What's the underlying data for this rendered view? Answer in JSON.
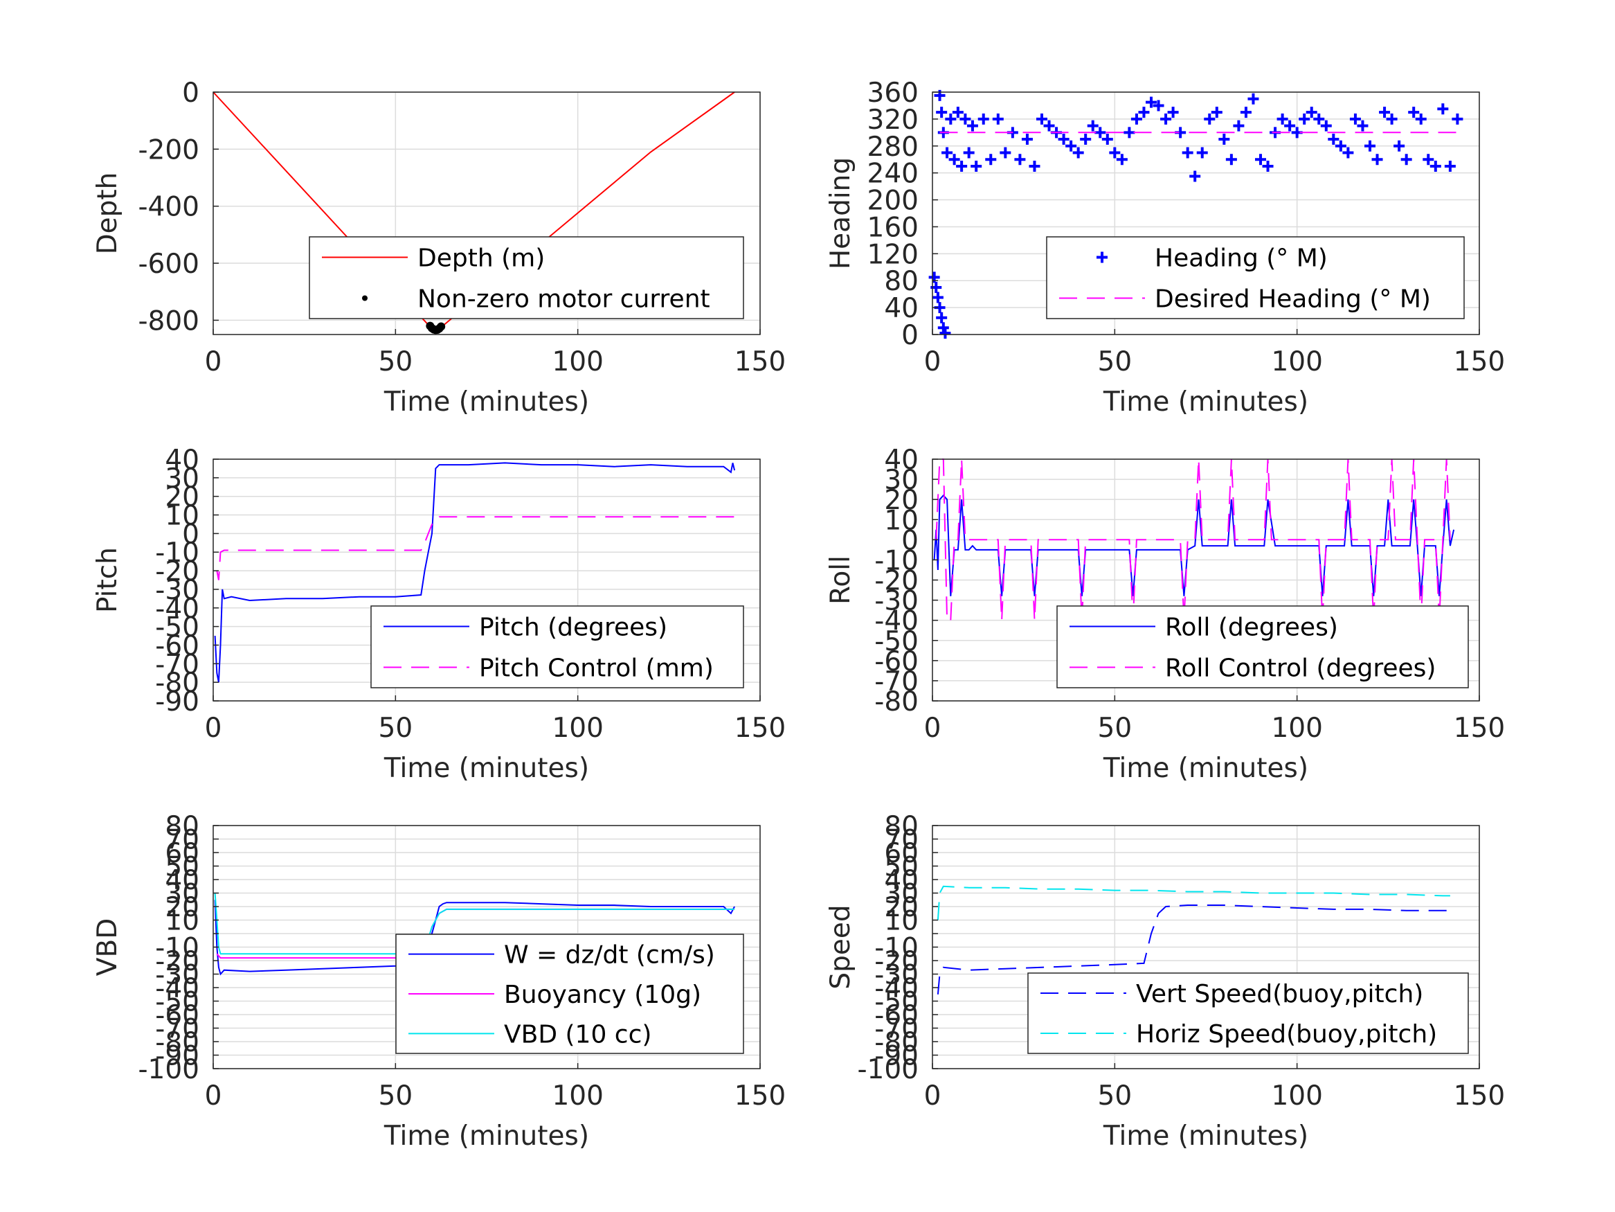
{
  "figure": {
    "background": "#ffffff",
    "grid_color": "#dcdcdc",
    "axis_color": "#262626"
  },
  "chart_data": [
    {
      "id": "depth",
      "type": "line",
      "xlabel": "Time (minutes)",
      "ylabel": "Depth",
      "xlim": [
        0,
        150
      ],
      "ylim": [
        -850,
        0
      ],
      "xticks": [
        0,
        50,
        100,
        150
      ],
      "yticks": [
        0,
        -200,
        -400,
        -600,
        -800
      ],
      "grid": true,
      "legend": {
        "placement": "bottom-right",
        "entries": [
          {
            "label": "Depth (m)",
            "color": "#ff0000",
            "style": "solid"
          },
          {
            "label": "Non-zero motor current",
            "color": "#000000",
            "style": "dot"
          }
        ]
      },
      "series": [
        {
          "name": "Depth (m)",
          "style": "solid",
          "color": "#ff0000",
          "x": [
            0,
            60,
            61,
            62,
            120,
            143
          ],
          "y": [
            0,
            -830,
            -835,
            -830,
            -210,
            0
          ]
        },
        {
          "name": "Non-zero motor current",
          "style": "dot",
          "color": "#000000",
          "x": [
            59.5,
            60,
            60.5,
            61,
            61.5,
            62,
            62.5
          ],
          "y": [
            -820,
            -828,
            -832,
            -834,
            -833,
            -829,
            -822
          ]
        }
      ]
    },
    {
      "id": "heading",
      "type": "scatter",
      "xlabel": "Time (minutes)",
      "ylabel": "Heading",
      "xlim": [
        0,
        150
      ],
      "ylim": [
        0,
        360
      ],
      "xticks": [
        0,
        50,
        100,
        150
      ],
      "yticks": [
        0,
        40,
        80,
        120,
        160,
        200,
        240,
        280,
        320,
        360
      ],
      "grid": true,
      "legend": {
        "placement": "bottom-right",
        "entries": [
          {
            "label": "Heading (° M)",
            "color": "#0000ff",
            "style": "plus"
          },
          {
            "label": "Desired Heading (° M)",
            "color": "#ff00ff",
            "style": "dashed"
          }
        ]
      },
      "series": [
        {
          "name": "Heading (° M)",
          "style": "plus",
          "color": "#0000ff",
          "x": [
            0.5,
            1,
            1.5,
            2,
            2.5,
            3,
            3.5,
            2,
            2.5,
            3,
            4,
            5,
            6,
            7,
            8,
            9,
            10,
            11,
            12,
            14,
            16,
            18,
            20,
            22,
            24,
            26,
            28,
            30,
            32,
            34,
            36,
            38,
            40,
            42,
            44,
            46,
            48,
            50,
            52,
            54,
            56,
            58,
            60,
            62,
            64,
            66,
            68,
            70,
            72,
            74,
            76,
            78,
            80,
            82,
            84,
            86,
            88,
            90,
            92,
            94,
            96,
            98,
            100,
            102,
            104,
            106,
            108,
            110,
            112,
            114,
            116,
            118,
            120,
            122,
            124,
            126,
            128,
            130,
            132,
            134,
            136,
            138,
            140,
            142,
            144
          ],
          "y": [
            85,
            70,
            55,
            40,
            25,
            10,
            2,
            355,
            330,
            300,
            270,
            320,
            260,
            330,
            250,
            320,
            270,
            310,
            250,
            320,
            260,
            320,
            270,
            300,
            260,
            290,
            250,
            320,
            310,
            300,
            290,
            280,
            270,
            290,
            310,
            300,
            290,
            270,
            260,
            300,
            320,
            330,
            345,
            340,
            320,
            330,
            300,
            270,
            235,
            270,
            320,
            330,
            290,
            260,
            310,
            330,
            350,
            260,
            250,
            300,
            320,
            310,
            300,
            320,
            330,
            320,
            310,
            290,
            280,
            270,
            320,
            310,
            280,
            260,
            330,
            320,
            280,
            260,
            330,
            320,
            260,
            250,
            335,
            250,
            320
          ]
        },
        {
          "name": "Desired Heading (° M)",
          "style": "dashed",
          "color": "#ff00ff",
          "x": [
            2,
            144
          ],
          "y": [
            300,
            300
          ]
        }
      ]
    },
    {
      "id": "pitch",
      "type": "line",
      "xlabel": "Time (minutes)",
      "ylabel": "Pitch",
      "xlim": [
        0,
        150
      ],
      "ylim": [
        -90,
        40
      ],
      "xticks": [
        0,
        50,
        100,
        150
      ],
      "yticks": [
        40,
        30,
        20,
        10,
        0,
        -10,
        -20,
        -30,
        -40,
        -50,
        -60,
        -70,
        -80,
        -90
      ],
      "grid": true,
      "legend": {
        "placement": "bottom-right",
        "entries": [
          {
            "label": "Pitch (degrees)",
            "color": "#0000ff",
            "style": "solid"
          },
          {
            "label": "Pitch Control (mm)",
            "color": "#ff00ff",
            "style": "dashed"
          }
        ]
      },
      "series": [
        {
          "name": "Pitch (degrees)",
          "style": "solid",
          "color": "#0000ff",
          "x": [
            0.5,
            1,
            1.5,
            2,
            2.5,
            3,
            5,
            10,
            20,
            30,
            40,
            50,
            57,
            58,
            59,
            60,
            61,
            62,
            70,
            80,
            90,
            100,
            110,
            120,
            130,
            140,
            142,
            142.5,
            143
          ],
          "y": [
            -55,
            -75,
            -80,
            -60,
            -30,
            -35,
            -34,
            -36,
            -35,
            -35,
            -34,
            -34,
            -33,
            -20,
            -10,
            0,
            35,
            37,
            37,
            38,
            37,
            37,
            36,
            37,
            36,
            36,
            33,
            38,
            34
          ]
        },
        {
          "name": "Pitch Control (mm)",
          "style": "dashed",
          "color": "#ff00ff",
          "x": [
            1,
            1.5,
            2,
            3,
            57,
            58,
            59,
            60,
            62,
            70,
            143
          ],
          "y": [
            -20,
            -25,
            -10,
            -9,
            -9,
            -5,
            0,
            5,
            9,
            9,
            9
          ]
        }
      ]
    },
    {
      "id": "roll",
      "type": "line",
      "xlabel": "Time (minutes)",
      "ylabel": "Roll",
      "xlim": [
        0,
        150
      ],
      "ylim": [
        -80,
        40
      ],
      "xticks": [
        0,
        50,
        100,
        150
      ],
      "yticks": [
        40,
        30,
        20,
        10,
        0,
        -10,
        -20,
        -30,
        -40,
        -50,
        -60,
        -70,
        -80
      ],
      "grid": true,
      "legend": {
        "placement": "bottom-right",
        "entries": [
          {
            "label": "Roll (degrees)",
            "color": "#0000ff",
            "style": "solid"
          },
          {
            "label": "Roll Control (degrees)",
            "color": "#ff00ff",
            "style": "dashed"
          }
        ]
      },
      "series": [
        {
          "name": "Roll (degrees)",
          "style": "solid",
          "color": "#0000ff",
          "x": [
            0.5,
            1,
            1.5,
            2,
            3,
            4,
            5,
            6,
            7,
            8,
            9,
            10,
            11,
            12,
            18,
            19,
            20,
            27,
            28,
            29,
            40,
            41,
            42,
            54,
            55,
            56,
            68,
            69,
            70,
            72,
            73,
            74,
            81,
            82,
            83,
            88,
            90,
            91,
            92,
            94,
            100,
            106,
            107,
            108,
            113,
            114,
            115,
            118,
            120,
            121,
            122,
            124,
            125,
            126,
            127,
            131,
            132,
            133,
            134,
            135,
            138,
            139,
            140,
            141,
            142,
            143
          ],
          "y": [
            -10,
            5,
            -15,
            20,
            22,
            20,
            -28,
            -5,
            -5,
            20,
            -5,
            -5,
            -3,
            -5,
            -5,
            -28,
            -5,
            -5,
            -28,
            -5,
            -5,
            -28,
            -5,
            -5,
            -28,
            -5,
            -5,
            -28,
            -5,
            -3,
            20,
            -3,
            -3,
            20,
            -3,
            -3,
            -3,
            -3,
            20,
            -3,
            -3,
            -3,
            -28,
            -3,
            -3,
            20,
            -3,
            -3,
            -3,
            -28,
            -3,
            -3,
            20,
            -3,
            -3,
            -3,
            20,
            -3,
            -28,
            -3,
            -3,
            -28,
            -3,
            20,
            -3,
            5
          ]
        },
        {
          "name": "Roll Control (degrees)",
          "style": "dashed",
          "color": "#ff00ff",
          "x": [
            1,
            2,
            3,
            4,
            5,
            6,
            7,
            8,
            9,
            10,
            12,
            18,
            19,
            20,
            27,
            28,
            29,
            40,
            41,
            42,
            54,
            55,
            56,
            68,
            69,
            70,
            72,
            73,
            74,
            81,
            82,
            83,
            91,
            92,
            93,
            106,
            107,
            108,
            113,
            114,
            115,
            120,
            121,
            122,
            125,
            126,
            127,
            131,
            132,
            133,
            134,
            135,
            138,
            139,
            140,
            141,
            142
          ],
          "y": [
            0,
            40,
            40,
            -40,
            -40,
            0,
            0,
            40,
            0,
            0,
            0,
            0,
            -40,
            0,
            0,
            -40,
            0,
            0,
            -40,
            0,
            0,
            -40,
            0,
            0,
            -40,
            0,
            0,
            40,
            0,
            0,
            40,
            0,
            0,
            40,
            0,
            0,
            -40,
            0,
            0,
            40,
            0,
            0,
            -40,
            0,
            0,
            40,
            0,
            0,
            40,
            0,
            -40,
            0,
            0,
            -40,
            0,
            40,
            0
          ]
        }
      ]
    },
    {
      "id": "vbd",
      "type": "line",
      "xlabel": "Time (minutes)",
      "ylabel": "VBD",
      "xlim": [
        0,
        150
      ],
      "ylim": [
        -100,
        80
      ],
      "xticks": [
        0,
        50,
        100,
        150
      ],
      "yticks": [
        80,
        70,
        60,
        50,
        40,
        30,
        20,
        10,
        0,
        -10,
        -20,
        -30,
        -40,
        -50,
        -60,
        -70,
        -80,
        -90,
        -100
      ],
      "ytick_labels": [
        "80",
        "70",
        "60",
        "50",
        "40",
        "30",
        "20",
        "10",
        "",
        "-10",
        "-20",
        "-30",
        "-40",
        "-50",
        "-60",
        "-70",
        "-80",
        "-90",
        "-100"
      ],
      "grid": true,
      "legend": {
        "placement": "bottom-right",
        "entries": [
          {
            "label": "W = dz/dt (cm/s)",
            "color": "#0000ff",
            "style": "solid"
          },
          {
            "label": "Buoyancy (10g)",
            "color": "#ff00ff",
            "style": "solid"
          },
          {
            "label": "VBD (10 cc)",
            "color": "#00e5ee",
            "style": "solid"
          }
        ]
      },
      "series": [
        {
          "name": "W = dz/dt (cm/s)",
          "style": "solid",
          "color": "#0000ff",
          "x": [
            0.5,
            1,
            1.5,
            2,
            3,
            10,
            20,
            30,
            40,
            50,
            56,
            57,
            58,
            59,
            60,
            61,
            62,
            63,
            64,
            70,
            80,
            90,
            100,
            110,
            120,
            130,
            140,
            142,
            143
          ],
          "y": [
            25,
            -10,
            -25,
            -30,
            -27,
            -28,
            -27,
            -26,
            -25,
            -24,
            -22,
            -20,
            -15,
            -10,
            0,
            10,
            20,
            22,
            23,
            23,
            23,
            22,
            21,
            21,
            20,
            20,
            20,
            15,
            20
          ]
        },
        {
          "name": "Buoyancy (10g)",
          "style": "solid",
          "color": "#ff00ff",
          "x": [
            1,
            2,
            3,
            57,
            58,
            60,
            62,
            64,
            143
          ],
          "y": [
            -15,
            -18,
            -18,
            -18,
            -15,
            5,
            15,
            18,
            18
          ]
        },
        {
          "name": "VBD (10 cc)",
          "style": "solid",
          "color": "#00e5ee",
          "x": [
            0.5,
            1,
            1.5,
            2,
            3,
            57,
            58,
            60,
            62,
            64,
            143
          ],
          "y": [
            30,
            10,
            -10,
            -15,
            -15,
            -15,
            -12,
            5,
            15,
            18,
            18
          ]
        }
      ]
    },
    {
      "id": "speed",
      "type": "line",
      "xlabel": "Time (minutes)",
      "ylabel": "Speed",
      "xlim": [
        0,
        150
      ],
      "ylim": [
        -100,
        80
      ],
      "xticks": [
        0,
        50,
        100,
        150
      ],
      "yticks": [
        80,
        70,
        60,
        50,
        40,
        30,
        20,
        10,
        0,
        -10,
        -20,
        -30,
        -40,
        -50,
        -60,
        -70,
        -80,
        -90,
        -100
      ],
      "ytick_labels": [
        "80",
        "70",
        "60",
        "50",
        "40",
        "30",
        "20",
        "10",
        "",
        "-10",
        "-20",
        "-30",
        "-40",
        "-50",
        "-60",
        "-70",
        "-80",
        "-90",
        "-100"
      ],
      "grid": true,
      "legend": {
        "placement": "bottom-right",
        "entries": [
          {
            "label": "Vert Speed(buoy,pitch)",
            "color": "#0000ff",
            "style": "dashed"
          },
          {
            "label": "Horiz Speed(buoy,pitch)",
            "color": "#00e5ee",
            "style": "dashed"
          }
        ]
      },
      "series": [
        {
          "name": "Vert Speed(buoy,pitch)",
          "style": "dashed",
          "color": "#0000ff",
          "x": [
            1.5,
            2,
            3,
            10,
            20,
            30,
            40,
            50,
            58,
            60,
            62,
            64,
            70,
            80,
            90,
            100,
            110,
            120,
            130,
            140,
            142
          ],
          "y": [
            -45,
            -30,
            -25,
            -27,
            -26,
            -25,
            -24,
            -23,
            -22,
            0,
            15,
            20,
            21,
            21,
            20,
            19,
            18,
            18,
            17,
            17,
            17
          ]
        },
        {
          "name": "Horiz Speed(buoy,pitch)",
          "style": "dashed",
          "color": "#00e5ee",
          "x": [
            1.5,
            2,
            3,
            10,
            20,
            30,
            40,
            50,
            60,
            70,
            80,
            90,
            100,
            110,
            120,
            130,
            140,
            142
          ],
          "y": [
            10,
            30,
            35,
            34,
            34,
            33,
            33,
            32,
            32,
            31,
            31,
            30,
            30,
            30,
            29,
            29,
            28,
            28
          ]
        }
      ]
    }
  ]
}
